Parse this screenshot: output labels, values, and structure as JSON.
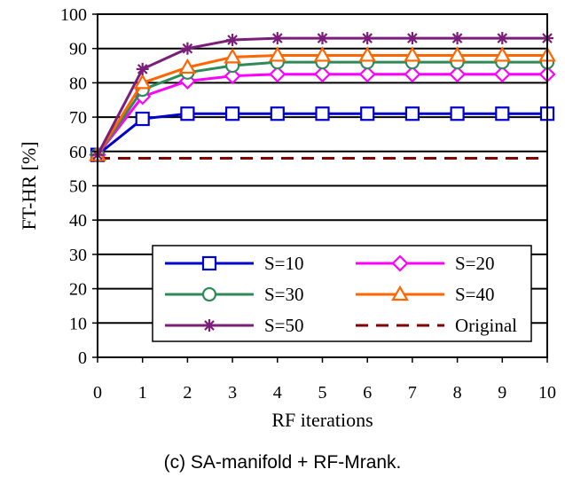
{
  "chart_data": {
    "type": "line",
    "title": "",
    "caption": "(c) SA-manifold + RF-Mrank.",
    "xlabel": "RF iterations",
    "ylabel": "FT-HR [%]",
    "xlim": [
      0,
      10
    ],
    "ylim": [
      0,
      100
    ],
    "x_ticks": [
      0,
      1,
      2,
      3,
      4,
      5,
      6,
      7,
      8,
      9,
      10
    ],
    "y_ticks": [
      0,
      10,
      20,
      30,
      40,
      50,
      60,
      70,
      80,
      90,
      100
    ],
    "grid": "horizontal",
    "legend_position": "bottom-center",
    "x": [
      0,
      1,
      2,
      3,
      4,
      5,
      6,
      7,
      8,
      9,
      10
    ],
    "series": [
      {
        "name": "S=10",
        "color": "#0000cc",
        "marker": "square",
        "dash": "solid",
        "values": [
          59,
          69.5,
          71,
          71,
          71,
          71,
          71,
          71,
          71,
          71,
          71
        ]
      },
      {
        "name": "S=20",
        "color": "#ff00ff",
        "marker": "diamond",
        "dash": "solid",
        "values": [
          59,
          76,
          80.5,
          82,
          82.5,
          82.5,
          82.5,
          82.5,
          82.5,
          82.5,
          82.5
        ]
      },
      {
        "name": "S=30",
        "color": "#2e8b57",
        "marker": "circle",
        "dash": "solid",
        "values": [
          59,
          78,
          83,
          85,
          86,
          86,
          86,
          86,
          86,
          86,
          86
        ]
      },
      {
        "name": "S=40",
        "color": "#ff6600",
        "marker": "triangle",
        "dash": "solid",
        "values": [
          59,
          80,
          84.5,
          87.5,
          88,
          88,
          88,
          88,
          88,
          88,
          88
        ]
      },
      {
        "name": "S=50",
        "color": "#7b1e7a",
        "marker": "asterisk",
        "dash": "solid",
        "values": [
          59,
          84,
          90,
          92.5,
          93,
          93,
          93,
          93,
          93,
          93,
          93
        ]
      },
      {
        "name": "Original",
        "color": "#800000",
        "marker": "none",
        "dash": "dashed",
        "values": [
          58,
          58,
          58,
          58,
          58,
          58,
          58,
          58,
          58,
          58,
          58
        ]
      }
    ],
    "legend_order": [
      "S=10",
      "S=20",
      "S=30",
      "S=40",
      "S=50",
      "Original"
    ]
  }
}
